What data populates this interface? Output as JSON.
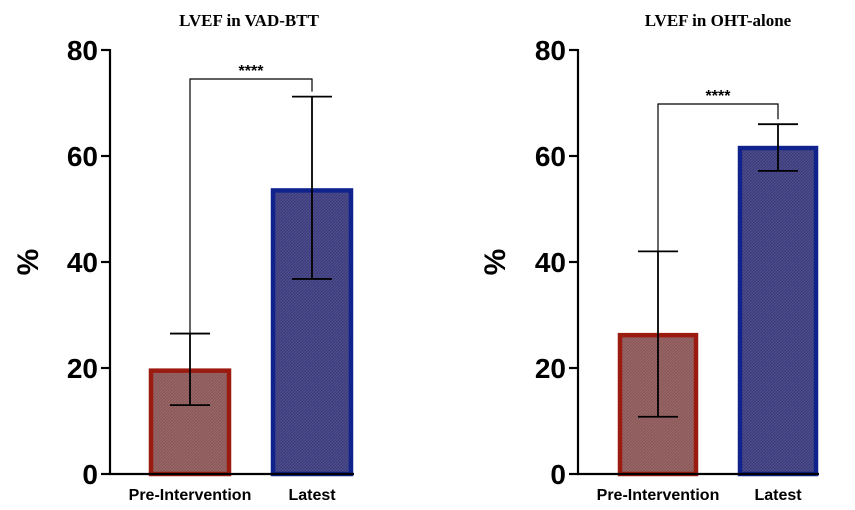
{
  "chart_data": [
    {
      "type": "bar",
      "title": "LVEF in VAD-BTT",
      "ylabel": "%",
      "ylim": [
        0,
        80
      ],
      "yticks": [
        "0",
        "20",
        "40",
        "60",
        "80"
      ],
      "categories": [
        "Pre-Intervention",
        "Latest"
      ],
      "values": [
        19.5,
        53.5
      ],
      "error_upper": [
        26.5,
        71.2
      ],
      "error_lower": [
        13,
        36.8
      ],
      "significance": "****",
      "bar_fill_colors": [
        "#8c5a5a",
        "#3f3f7c"
      ],
      "bar_edge_colors": [
        "#9b1b10",
        "#10238c"
      ]
    },
    {
      "type": "bar",
      "title": "LVEF in OHT-alone",
      "ylabel": "%",
      "ylim": [
        0,
        80
      ],
      "yticks": [
        "0",
        "20",
        "40",
        "60",
        "80"
      ],
      "categories": [
        "Pre-Intervention",
        "Latest"
      ],
      "values": [
        26.2,
        61.5
      ],
      "error_upper": [
        42,
        66
      ],
      "error_lower": [
        10.8,
        57.2
      ],
      "significance": "****",
      "bar_fill_colors": [
        "#8c5a5a",
        "#3f3f7c"
      ],
      "bar_edge_colors": [
        "#9b1b10",
        "#10238c"
      ]
    }
  ]
}
